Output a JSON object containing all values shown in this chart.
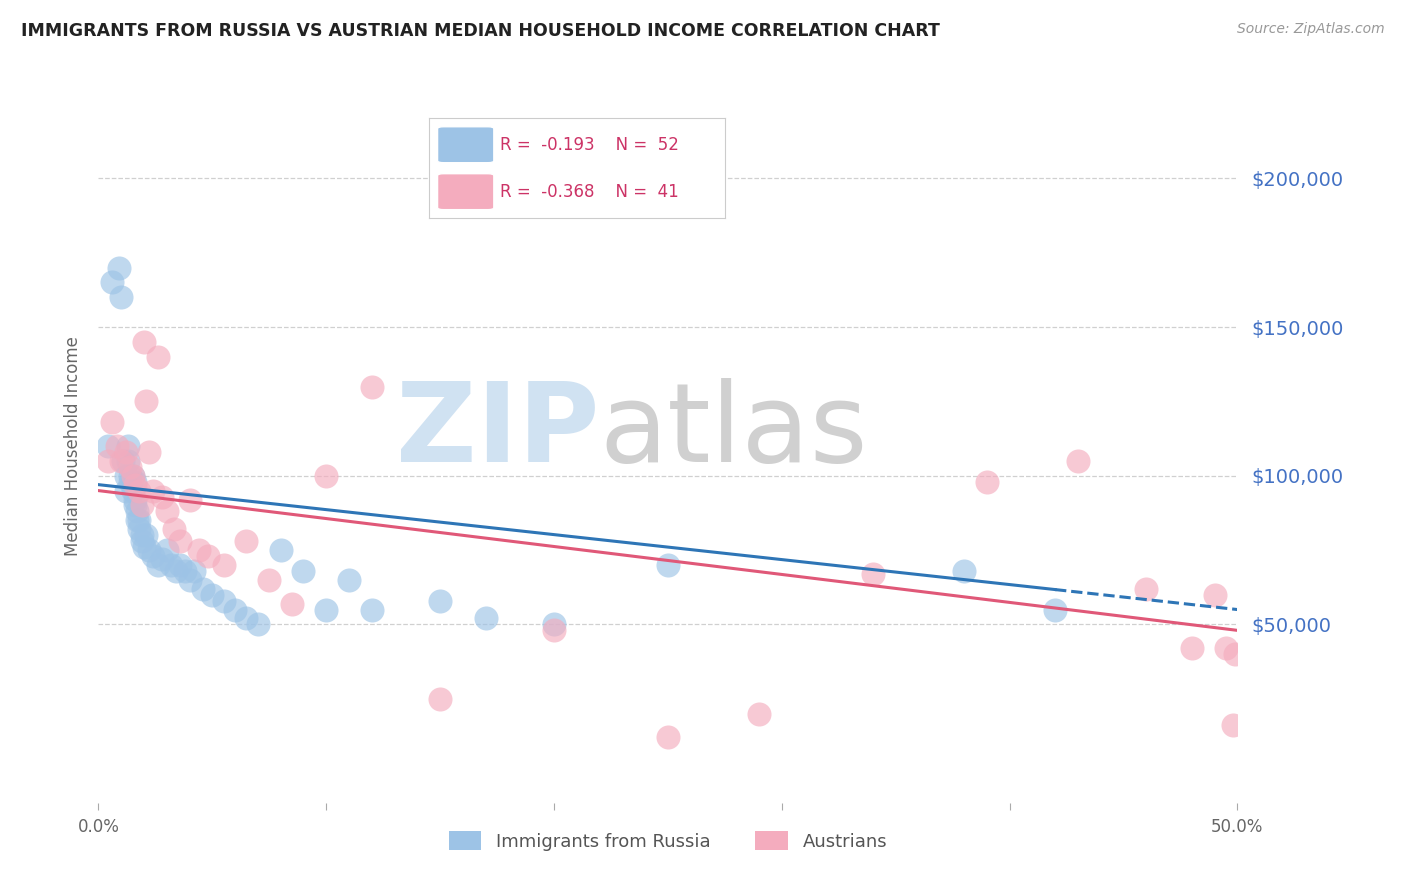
{
  "title": "IMMIGRANTS FROM RUSSIA VS AUSTRIAN MEDIAN HOUSEHOLD INCOME CORRELATION CHART",
  "source": "Source: ZipAtlas.com",
  "ylabel": "Median Household Income",
  "ytick_labels": [
    "$50,000",
    "$100,000",
    "$150,000",
    "$200,000"
  ],
  "ytick_values": [
    50000,
    100000,
    150000,
    200000
  ],
  "ylim": [
    -10000,
    230000
  ],
  "xlim": [
    0,
    0.5
  ],
  "watermark_zip": "ZIP",
  "watermark_atlas": "atlas",
  "legend_r1": "-0.193",
  "legend_n1": "52",
  "legend_r2": "-0.368",
  "legend_n2": "41",
  "blue_color": "#9dc3e6",
  "pink_color": "#f4acbe",
  "blue_line_color": "#2e75b6",
  "pink_line_color": "#e05878",
  "blue_scatter_x": [
    0.004,
    0.006,
    0.009,
    0.01,
    0.011,
    0.012,
    0.012,
    0.013,
    0.013,
    0.014,
    0.014,
    0.015,
    0.015,
    0.016,
    0.016,
    0.016,
    0.017,
    0.017,
    0.018,
    0.018,
    0.019,
    0.019,
    0.02,
    0.021,
    0.022,
    0.024,
    0.026,
    0.028,
    0.03,
    0.032,
    0.034,
    0.036,
    0.038,
    0.04,
    0.042,
    0.046,
    0.05,
    0.055,
    0.06,
    0.065,
    0.07,
    0.08,
    0.09,
    0.1,
    0.11,
    0.12,
    0.15,
    0.17,
    0.2,
    0.25,
    0.38,
    0.42
  ],
  "blue_scatter_y": [
    110000,
    165000,
    170000,
    160000,
    105000,
    95000,
    100000,
    110000,
    105000,
    100000,
    98000,
    95000,
    100000,
    98000,
    92000,
    90000,
    88000,
    85000,
    82000,
    85000,
    80000,
    78000,
    76000,
    80000,
    75000,
    73000,
    70000,
    72000,
    75000,
    70000,
    68000,
    70000,
    68000,
    65000,
    68000,
    62000,
    60000,
    58000,
    55000,
    52000,
    50000,
    75000,
    68000,
    55000,
    65000,
    55000,
    58000,
    52000,
    50000,
    70000,
    68000,
    55000
  ],
  "pink_scatter_x": [
    0.004,
    0.006,
    0.008,
    0.01,
    0.012,
    0.014,
    0.015,
    0.016,
    0.018,
    0.019,
    0.02,
    0.021,
    0.022,
    0.024,
    0.026,
    0.028,
    0.03,
    0.033,
    0.036,
    0.04,
    0.044,
    0.048,
    0.055,
    0.065,
    0.075,
    0.085,
    0.1,
    0.12,
    0.15,
    0.2,
    0.25,
    0.29,
    0.34,
    0.39,
    0.43,
    0.46,
    0.48,
    0.49,
    0.495,
    0.498,
    0.499
  ],
  "pink_scatter_y": [
    105000,
    118000,
    110000,
    105000,
    108000,
    103000,
    100000,
    97000,
    95000,
    90000,
    145000,
    125000,
    108000,
    95000,
    140000,
    93000,
    88000,
    82000,
    78000,
    92000,
    75000,
    73000,
    70000,
    78000,
    65000,
    57000,
    100000,
    130000,
    25000,
    48000,
    12000,
    20000,
    67000,
    98000,
    105000,
    62000,
    42000,
    60000,
    42000,
    16000,
    40000
  ],
  "background_color": "#ffffff",
  "grid_color": "#d0d0d0",
  "title_color": "#222222",
  "xtick_color": "#666666",
  "ytick_right_color": "#4472c4"
}
